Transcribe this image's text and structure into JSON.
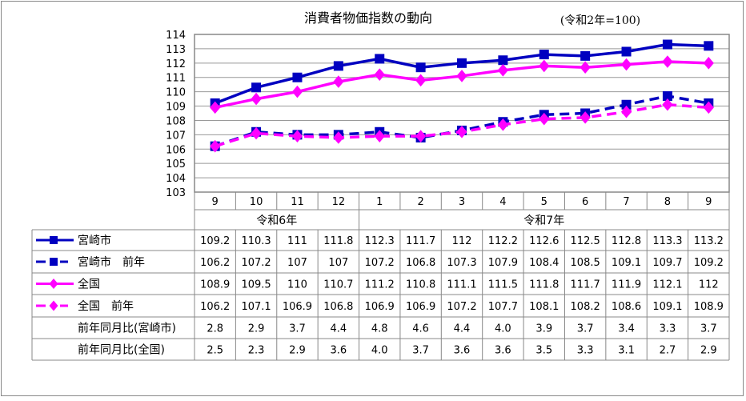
{
  "chart_data": {
    "type": "line",
    "title": "消費者物価指数の動向",
    "subtitle": "(令和2年=100)",
    "ylim": [
      103,
      114
    ],
    "yticks": [
      103,
      104,
      105,
      106,
      107,
      108,
      109,
      110,
      111,
      112,
      113,
      114
    ],
    "grid": true,
    "categories": [
      "9",
      "10",
      "11",
      "12",
      "1",
      "2",
      "3",
      "4",
      "5",
      "6",
      "7",
      "8",
      "9"
    ],
    "year_groups": [
      {
        "label": "令和6年",
        "span": 4
      },
      {
        "label": "令和7年",
        "span": 9
      }
    ],
    "series": [
      {
        "name": "宮崎市",
        "color": "#0000c0",
        "marker": "square",
        "dash": false,
        "values": [
          109.2,
          110.3,
          111.0,
          111.8,
          112.3,
          111.7,
          112.0,
          112.2,
          112.6,
          112.5,
          112.8,
          113.3,
          113.2
        ]
      },
      {
        "name": "宮崎市　前年",
        "color": "#0000c0",
        "marker": "square",
        "dash": true,
        "values": [
          106.2,
          107.2,
          107.0,
          107.0,
          107.2,
          106.8,
          107.3,
          107.9,
          108.4,
          108.5,
          109.1,
          109.7,
          109.2
        ]
      },
      {
        "name": "全国",
        "color": "#ff00ff",
        "marker": "diamond",
        "dash": false,
        "values": [
          108.9,
          109.5,
          110.0,
          110.7,
          111.2,
          110.8,
          111.1,
          111.5,
          111.8,
          111.7,
          111.9,
          112.1,
          112.0
        ]
      },
      {
        "name": "全国　前年",
        "color": "#ff00ff",
        "marker": "diamond",
        "dash": true,
        "values": [
          106.2,
          107.1,
          106.9,
          106.8,
          106.9,
          106.9,
          107.2,
          107.7,
          108.1,
          108.2,
          108.6,
          109.1,
          108.9
        ]
      }
    ],
    "extra_rows": [
      {
        "name": "前年同月比(宮崎市)",
        "values": [
          "2.8",
          "2.9",
          "3.7",
          "4.4",
          "4.8",
          "4.6",
          "4.4",
          "4.0",
          "3.9",
          "3.7",
          "3.4",
          "3.3",
          "3.7"
        ]
      },
      {
        "name": "前年同月比(全国)",
        "values": [
          "2.5",
          "2.3",
          "2.9",
          "3.6",
          "4.0",
          "3.7",
          "3.6",
          "3.6",
          "3.5",
          "3.3",
          "3.1",
          "2.7",
          "2.9"
        ]
      }
    ]
  }
}
